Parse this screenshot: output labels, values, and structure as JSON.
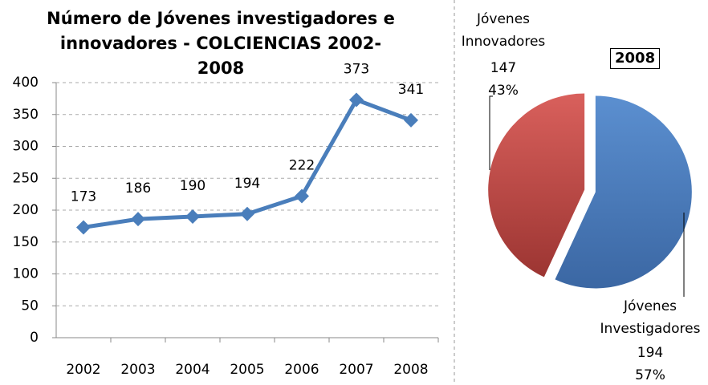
{
  "chart_data": [
    {
      "type": "line",
      "title": "Número de Jóvenes investigadores e innovadores - COLCIENCIAS 2002-2008",
      "categories": [
        "2002",
        "2003",
        "2004",
        "2005",
        "2006",
        "2007",
        "2008"
      ],
      "values": [
        173,
        186,
        190,
        194,
        222,
        373,
        341
      ],
      "color": "#4a7ebb",
      "ylim": [
        0,
        400
      ],
      "yticks": [
        0,
        50,
        100,
        150,
        200,
        250,
        300,
        350,
        400
      ],
      "grid": true
    },
    {
      "type": "pie",
      "title": "2008",
      "categories": [
        "Jóvenes Innovadores",
        "Jóvenes Investigadores"
      ],
      "values": [
        147,
        194
      ],
      "percent_labels": [
        "43%",
        "57%"
      ],
      "colors": [
        "#c0504d",
        "#4f81bd"
      ]
    }
  ]
}
